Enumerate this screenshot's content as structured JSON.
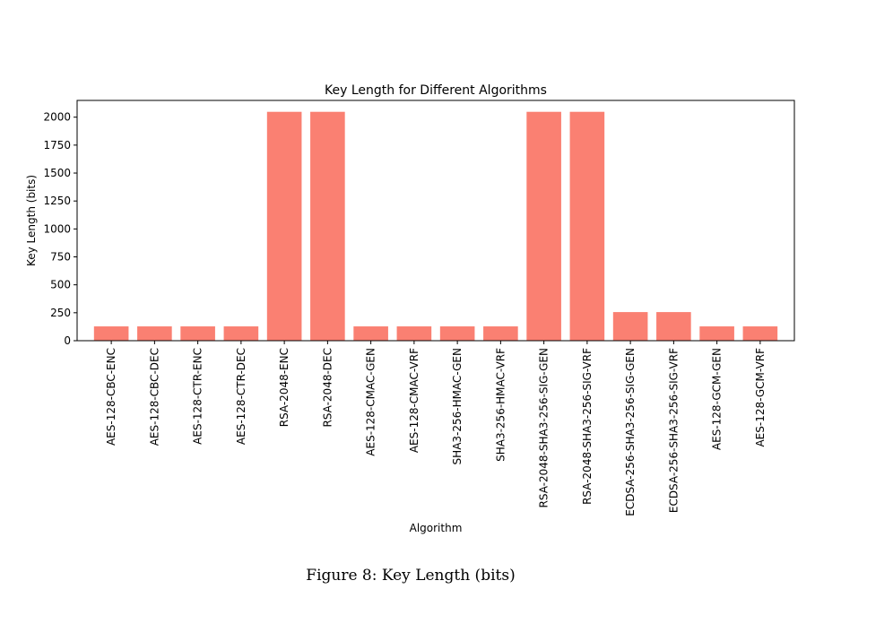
{
  "chart_data": {
    "type": "bar",
    "title": "Key Length for Different Algorithms",
    "xlabel": "Algorithm",
    "ylabel": "Key Length (bits)",
    "categories": [
      "AES-128-CBC-ENC",
      "AES-128-CBC-DEC",
      "AES-128-CTR-ENC",
      "AES-128-CTR-DEC",
      "RSA-2048-ENC",
      "RSA-2048-DEC",
      "AES-128-CMAC-GEN",
      "AES-128-CMAC-VRF",
      "SHA3-256-HMAC-GEN",
      "SHA3-256-HMAC-VRF",
      "RSA-2048-SHA3-256-SIG-GEN",
      "RSA-2048-SHA3-256-SIG-VRF",
      "ECDSA-256-SHA3-256-SIG-GEN",
      "ECDSA-256-SHA3-256-SIG-VRF",
      "AES-128-GCM-GEN",
      "AES-128-GCM-VRF"
    ],
    "values": [
      128,
      128,
      128,
      128,
      2048,
      2048,
      128,
      128,
      128,
      128,
      2048,
      2048,
      256,
      256,
      128,
      128
    ],
    "yticks": [
      0,
      250,
      500,
      750,
      1000,
      1250,
      1500,
      1750,
      2000
    ],
    "ylim": [
      0,
      2150
    ],
    "grid": false,
    "legend": "none",
    "bar_color": "#FA8072"
  },
  "caption": "Figure 8: Key Length (bits)"
}
